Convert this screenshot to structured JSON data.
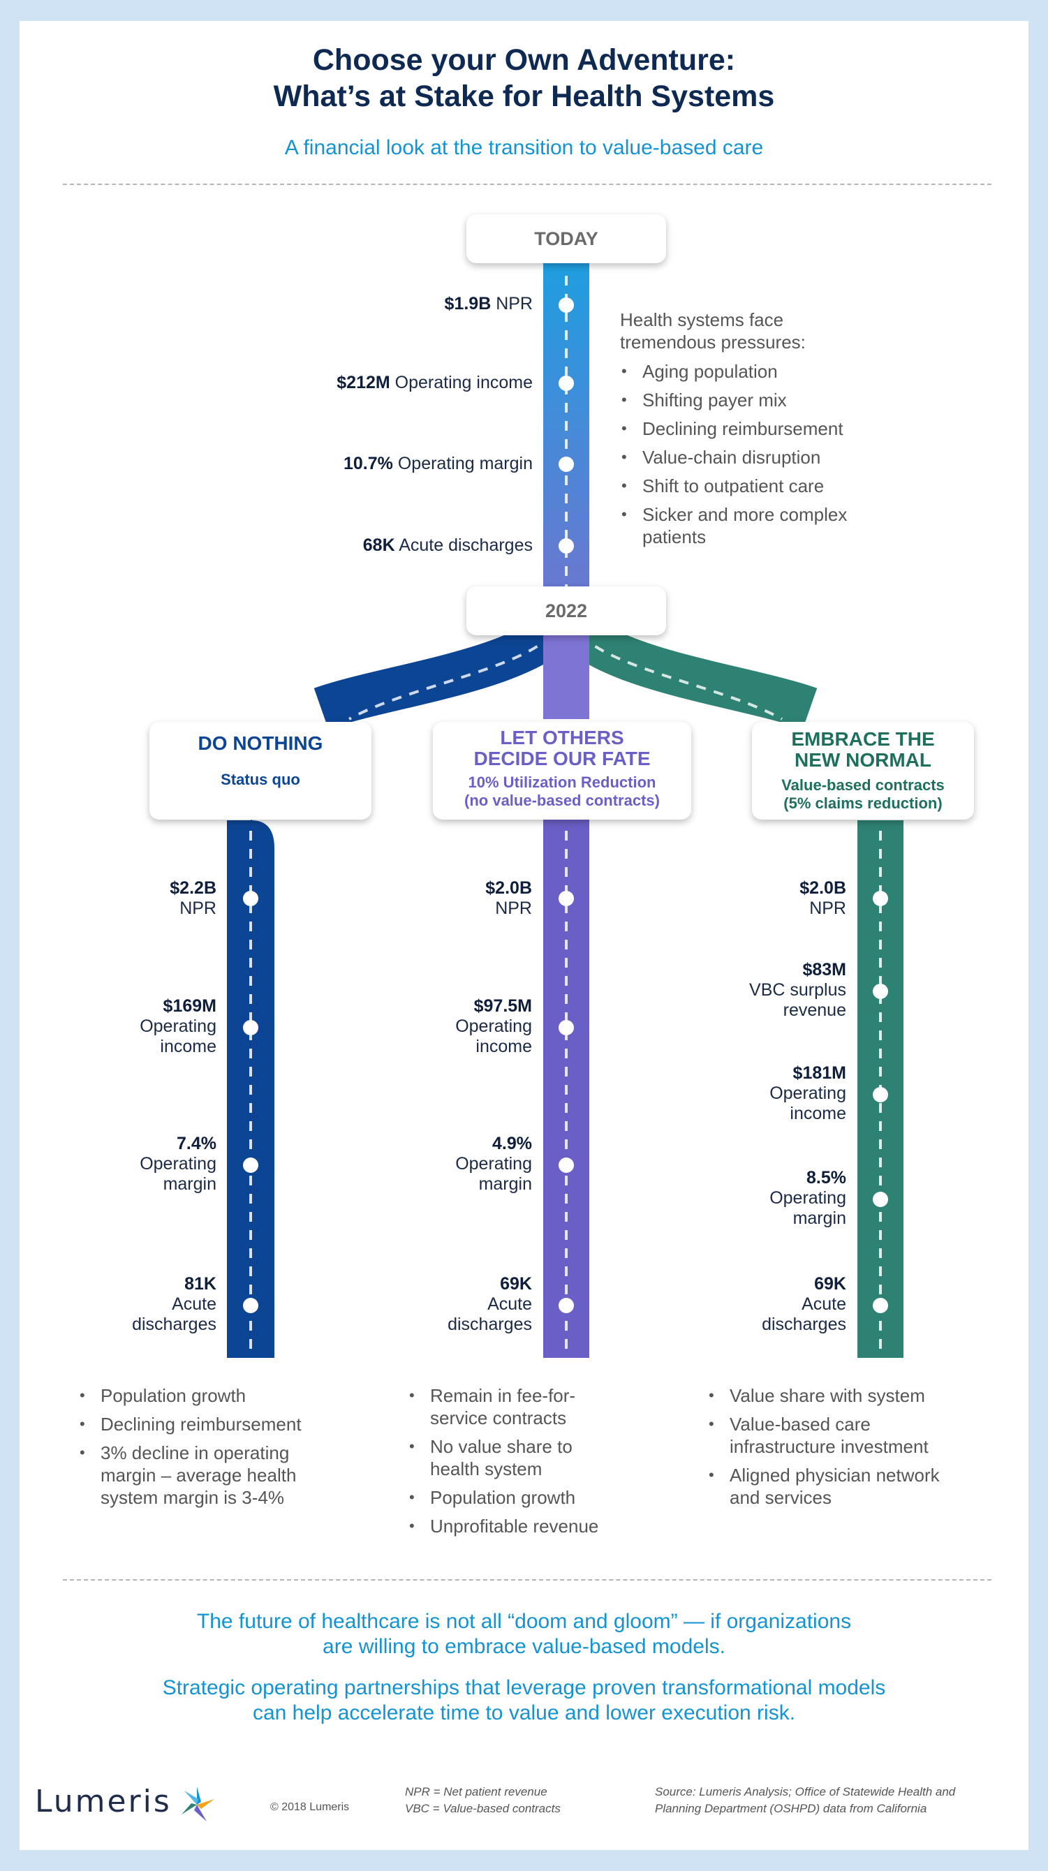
{
  "header": {
    "title_line1": "Choose your Own Adventure:",
    "title_line2": "What’s at Stake for Health Systems",
    "subtitle": "A financial look at the transition to value-based care"
  },
  "today": {
    "label": "TODAY",
    "stats": [
      {
        "value": "$1.9B",
        "label": "NPR"
      },
      {
        "value": "$212M",
        "label": "Operating income"
      },
      {
        "value": "10.7%",
        "label": "Operating margin"
      },
      {
        "value": "68K",
        "label": "Acute discharges"
      }
    ],
    "pressures_intro_line1": "Health systems face",
    "pressures_intro_line2": "tremendous pressures:",
    "pressures": [
      "Aging population",
      "Shifting payer mix",
      "Declining reimbursement",
      "Value-chain disruption",
      "Shift to outpatient care",
      "Sicker and more complex patients"
    ]
  },
  "year_label": "2022",
  "paths": [
    {
      "title_line1": "DO NOTHING",
      "title_line2": "",
      "sub_line1": "Status quo",
      "sub_line2": "",
      "color": "#0d4595",
      "stats": [
        {
          "value": "$2.2B",
          "line1": "NPR",
          "line2": ""
        },
        {
          "value": "$169M",
          "line1": "Operating",
          "line2": "income"
        },
        {
          "value": "7.4%",
          "line1": "Operating",
          "line2": "margin"
        },
        {
          "value": "81K",
          "line1": "Acute",
          "line2": "discharges"
        }
      ],
      "bullets": [
        "Population growth",
        "Declining reimbursement",
        "3% decline in operating margin – average health system margin is 3-4%"
      ]
    },
    {
      "title_line1": "LET OTHERS",
      "title_line2": "DECIDE OUR FATE",
      "sub_line1": "10% Utilization Reduction",
      "sub_line2": "(no value-based contracts)",
      "color": "#6a5fc6",
      "stats": [
        {
          "value": "$2.0B",
          "line1": "NPR",
          "line2": ""
        },
        {
          "value": "$97.5M",
          "line1": "Operating",
          "line2": "income"
        },
        {
          "value": "4.9%",
          "line1": "Operating",
          "line2": "margin"
        },
        {
          "value": "69K",
          "line1": "Acute",
          "line2": "discharges"
        }
      ],
      "bullets": [
        "Remain in fee-for-service contracts",
        "No value share to health system",
        "Population growth",
        "Unprofitable revenue"
      ]
    },
    {
      "title_line1": "EMBRACE THE",
      "title_line2": "NEW NORMAL",
      "sub_line1": "Value-based contracts",
      "sub_line2": "(5% claims reduction)",
      "color": "#2e8273",
      "stats": [
        {
          "value": "$2.0B",
          "line1": "NPR",
          "line2": ""
        },
        {
          "value": "$83M",
          "line1": "VBC surplus",
          "line2": "revenue"
        },
        {
          "value": "$181M",
          "line1": "Operating",
          "line2": "income"
        },
        {
          "value": "8.5%",
          "line1": "Operating",
          "line2": "margin"
        },
        {
          "value": "69K",
          "line1": "Acute",
          "line2": "discharges"
        }
      ],
      "bullets": [
        "Value share with system",
        "Value-based care infrastructure investment",
        "Aligned physician network and services"
      ]
    }
  ],
  "conclusion": {
    "line1": "The future of healthcare is not all “doom and gloom” — if organizations",
    "line2": "are willing to embrace value-based models.",
    "line3": "Strategic operating partnerships that leverage proven transformational models",
    "line4": "can help accelerate time to value and lower execution risk."
  },
  "footer": {
    "logo": "Lumeris",
    "copyright": "© 2018 Lumeris",
    "glossary_line1": "NPR = Net patient revenue",
    "glossary_line2": "VBC = Value-based contracts",
    "source_line1": "Source: Lumeris Analysis; Office of Statewide Health and",
    "source_line2": "Planning Department (OSHPD) data from California"
  },
  "colors": {
    "navy": "#0f2a52",
    "accent_blue": "#1493d2",
    "do_nothing": "#0d4595",
    "let_others": "#6a5fc6",
    "embrace": "#2e8273",
    "today_trunk_top": "#1f9ee0",
    "today_trunk_bottom": "#6b77d0"
  }
}
